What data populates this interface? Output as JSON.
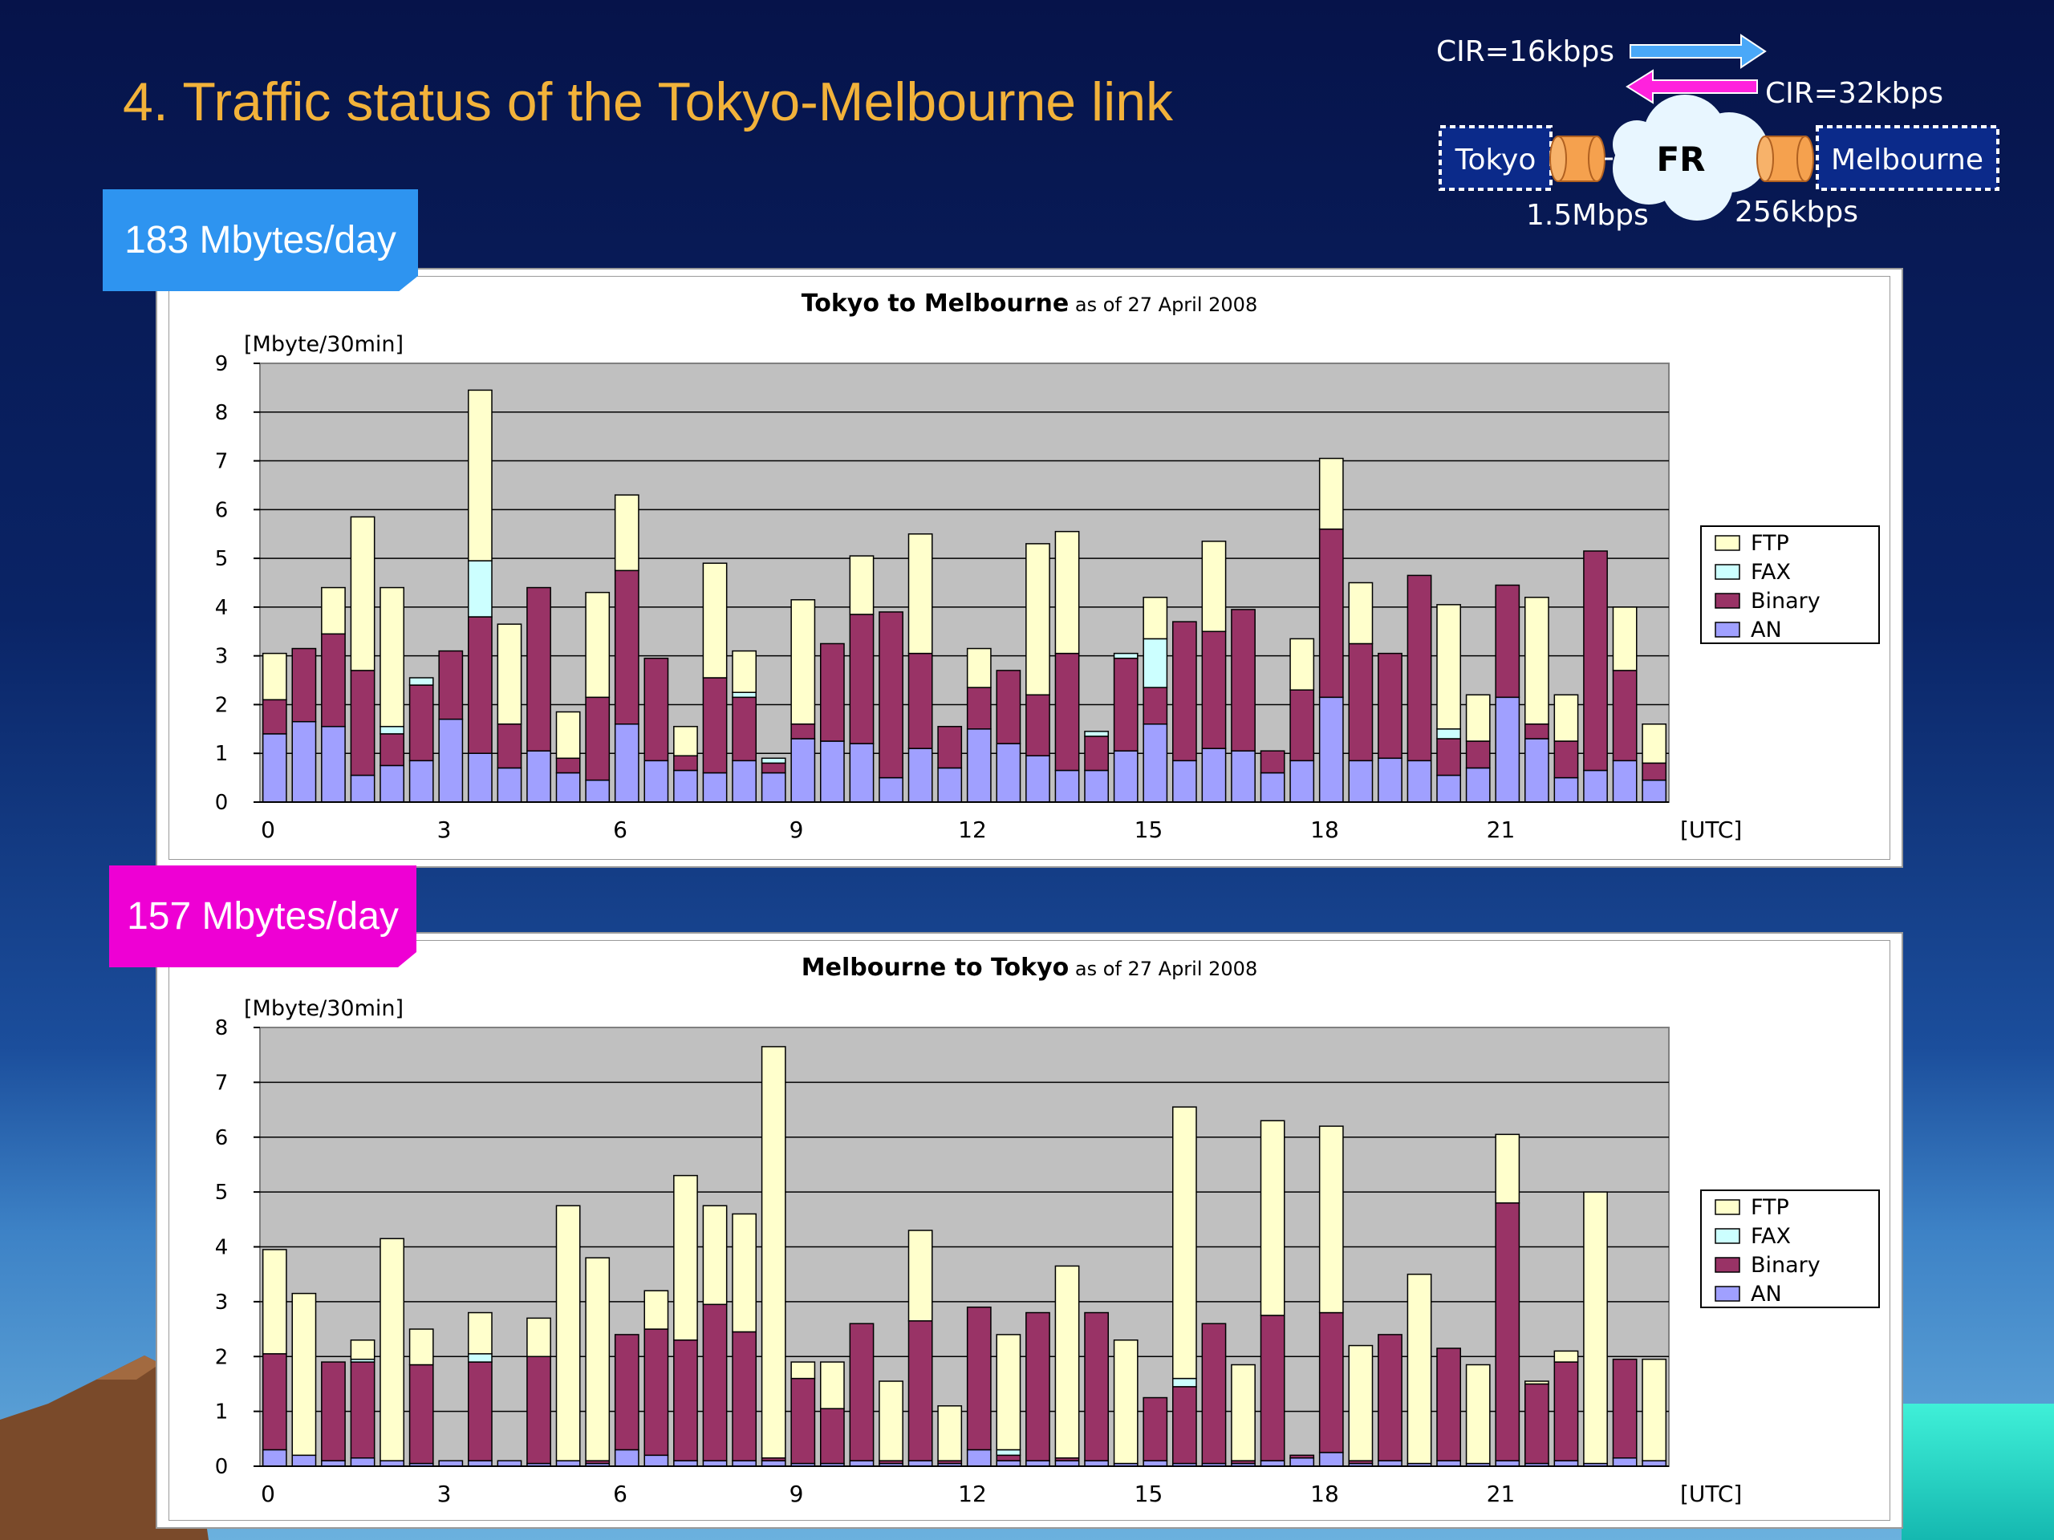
{
  "slide": {
    "title": "4.  Traffic status of the Tokyo-Melbourne link",
    "badge_upper": "183 Mbytes/day",
    "badge_lower": "157 Mbytes/day",
    "colors": {
      "title": "#f2b23a",
      "badge_upper": "#2e94f0",
      "badge_lower": "#ee00d4"
    }
  },
  "network": {
    "cir_upper": "CIR=16kbps",
    "cir_lower": "CIR=32kbps",
    "left_node": "Tokyo",
    "right_node": "Melbourne",
    "cloud": "FR",
    "left_speed": "1.5Mbps",
    "right_speed": "256kbps",
    "colors": {
      "upper_arrow": "#4aa8f8",
      "lower_arrow": "#ff22dd"
    }
  },
  "chart_data": [
    {
      "type": "bar",
      "stacked": true,
      "title_main": "Tokyo to Melbourne",
      "title_sub": "as of 27 April 2008",
      "ylabel": "[Mbyte/30min]",
      "xlabel": "[UTC]",
      "ylim": [
        0,
        9
      ],
      "yticks": [
        "0",
        "1",
        "2",
        "3",
        "4",
        "5",
        "6",
        "7",
        "8",
        "9"
      ],
      "xtick_labels": [
        "0",
        "3",
        "6",
        "9",
        "12",
        "15",
        "18",
        "21"
      ],
      "legend_position": "right",
      "grid": true,
      "series": [
        {
          "name": "AN",
          "color": "#a0a0ff",
          "values": [
            1.4,
            1.65,
            1.55,
            0.55,
            0.75,
            0.85,
            1.7,
            1.0,
            0.7,
            1.05,
            0.6,
            0.45,
            1.6,
            0.85,
            0.65,
            0.6,
            0.85,
            0.6,
            1.3,
            1.25,
            1.2,
            0.5,
            1.1,
            0.7,
            1.5,
            1.2,
            0.95,
            0.65,
            0.65,
            1.05,
            1.6,
            0.85,
            1.1,
            1.05,
            0.6,
            0.85,
            2.15,
            0.85,
            0.9,
            0.85,
            0.55,
            0.7,
            2.15,
            1.3,
            0.5,
            0.65,
            0.85,
            0.45
          ]
        },
        {
          "name": "Binary",
          "color": "#993366",
          "values": [
            0.7,
            1.5,
            1.9,
            2.15,
            0.65,
            1.55,
            1.4,
            2.8,
            0.9,
            3.35,
            0.3,
            1.7,
            3.15,
            2.1,
            0.3,
            1.95,
            1.3,
            0.2,
            0.3,
            2.0,
            2.65,
            3.4,
            1.95,
            0.85,
            0.85,
            1.5,
            1.25,
            2.4,
            0.7,
            1.9,
            0.75,
            2.85,
            2.4,
            2.9,
            0.45,
            1.45,
            3.45,
            2.4,
            2.15,
            3.8,
            0.75,
            0.55,
            2.3,
            0.3,
            0.75,
            4.5,
            1.85,
            0.35
          ]
        },
        {
          "name": "FAX",
          "color": "#ccffff",
          "values": [
            0,
            0,
            0,
            0,
            0.15,
            0.15,
            0,
            1.15,
            0,
            0,
            0,
            0,
            0,
            0,
            0,
            0,
            0.1,
            0.1,
            0,
            0,
            0,
            0,
            0,
            0,
            0,
            0,
            0,
            0,
            0.1,
            0.1,
            1.0,
            0,
            0,
            0,
            0,
            0,
            0,
            0,
            0,
            0,
            0.2,
            0,
            0,
            0,
            0,
            0,
            0,
            0
          ]
        },
        {
          "name": "FTP",
          "color": "#ffffcc",
          "values": [
            0.95,
            0,
            0.95,
            3.15,
            2.85,
            0,
            0,
            3.5,
            2.05,
            0,
            0.95,
            2.15,
            1.55,
            0,
            0.6,
            2.35,
            0.85,
            0,
            2.55,
            0,
            1.2,
            0,
            2.45,
            0,
            0.8,
            0,
            3.1,
            2.5,
            0,
            0,
            0.85,
            0,
            1.85,
            0,
            0,
            1.05,
            1.45,
            1.25,
            0,
            0,
            2.55,
            0.95,
            0,
            2.6,
            0.95,
            0,
            1.3,
            0.8
          ]
        }
      ]
    },
    {
      "type": "bar",
      "stacked": true,
      "title_main": "Melbourne to Tokyo",
      "title_sub": "as of 27 April 2008",
      "ylabel": "[Mbyte/30min]",
      "xlabel": "[UTC]",
      "ylim": [
        0,
        8
      ],
      "yticks": [
        "0",
        "1",
        "2",
        "3",
        "4",
        "5",
        "6",
        "7",
        "8"
      ],
      "xtick_labels": [
        "0",
        "3",
        "6",
        "9",
        "12",
        "15",
        "18",
        "21"
      ],
      "legend_position": "right",
      "grid": true,
      "series": [
        {
          "name": "AN",
          "color": "#a0a0ff",
          "values": [
            0.3,
            0.2,
            0.1,
            0.15,
            0.1,
            0.05,
            0.1,
            0.1,
            0.1,
            0.05,
            0.1,
            0.05,
            0.3,
            0.2,
            0.1,
            0.1,
            0.1,
            0.1,
            0.05,
            0.05,
            0.1,
            0.05,
            0.1,
            0.05,
            0.3,
            0.1,
            0.1,
            0.1,
            0.1,
            0.05,
            0.1,
            0.05,
            0.05,
            0.05,
            0.1,
            0.15,
            0.25,
            0.05,
            0.1,
            0.05,
            0.1,
            0.05,
            0.1,
            0.05,
            0.1,
            0.05,
            0.15,
            0.1
          ]
        },
        {
          "name": "Binary",
          "color": "#993366",
          "values": [
            1.75,
            0,
            1.8,
            1.75,
            0,
            1.8,
            0,
            1.8,
            0,
            1.95,
            0,
            0.05,
            2.1,
            2.3,
            2.2,
            2.85,
            2.35,
            0.05,
            1.55,
            1.0,
            2.5,
            0.05,
            2.55,
            0.05,
            2.6,
            0.1,
            2.7,
            0.05,
            2.7,
            0,
            1.15,
            1.4,
            2.55,
            0.05,
            2.65,
            0.05,
            2.55,
            0.05,
            2.3,
            0,
            2.05,
            0,
            4.7,
            1.45,
            1.8,
            0,
            1.8,
            0
          ]
        },
        {
          "name": "FAX",
          "color": "#ccffff",
          "values": [
            0,
            0,
            0,
            0.05,
            0,
            0,
            0,
            0.15,
            0,
            0,
            0,
            0,
            0,
            0,
            0,
            0,
            0,
            0,
            0,
            0,
            0,
            0,
            0,
            0,
            0,
            0.1,
            0,
            0,
            0,
            0,
            0,
            0.15,
            0,
            0,
            0,
            0,
            0,
            0,
            0,
            0,
            0,
            0,
            0,
            0,
            0,
            0,
            0,
            0
          ]
        },
        {
          "name": "FTP",
          "color": "#ffffcc",
          "values": [
            1.9,
            2.95,
            0,
            0.35,
            4.05,
            0.65,
            0,
            0.75,
            0,
            0.7,
            4.65,
            3.7,
            0,
            0.7,
            3.0,
            1.8,
            2.15,
            7.5,
            0.3,
            0.85,
            0,
            1.45,
            1.65,
            1.0,
            0,
            2.1,
            0,
            3.5,
            0,
            2.25,
            0,
            4.95,
            0,
            1.75,
            3.55,
            0,
            3.4,
            2.1,
            0,
            3.45,
            0,
            1.8,
            1.25,
            0.05,
            0.2,
            4.95,
            0,
            1.85
          ]
        }
      ]
    }
  ]
}
